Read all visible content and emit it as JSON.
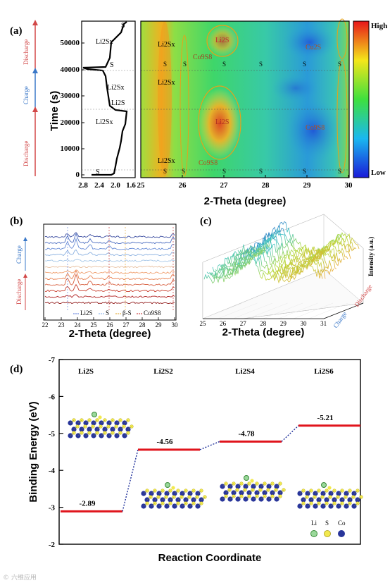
{
  "panel_a": {
    "label": "(a)",
    "side_labels": {
      "discharge_top": "Discharge",
      "charge": "Charge",
      "discharge_bottom": "Discharge"
    },
    "voltage_plot": {
      "ylabel": "Time (s)",
      "yticks": [
        "0",
        "10000",
        "20000",
        "30000",
        "40000",
        "50000"
      ],
      "xticks": [
        "2.8",
        "2.4",
        "2.0",
        "1.6"
      ],
      "annotations": [
        "S",
        "Li2Sx",
        "S",
        "Li2Sx",
        "Li2S",
        "Li2Sx",
        "S"
      ]
    },
    "heatmap": {
      "xlabel": "2-Theta (degree)",
      "xticks": [
        "25",
        "26",
        "27",
        "28",
        "29",
        "30"
      ],
      "colorbar_high": "High",
      "colorbar_low": "Low",
      "labels": {
        "li2sx_top": "Li2Sx",
        "li2s_top": "Li2S",
        "co9s8_top": "Co9S8",
        "cu2s_top": "Cu2S",
        "li2sx_mid": "Li2Sx",
        "li2s_mid": "Li2S",
        "co9s8_mid": "Co9S8",
        "li2sx_bottom": "Li2Sx",
        "co9s8_bottom": "Co9S8",
        "s_marker": "S"
      }
    }
  },
  "panel_b": {
    "label": "(b)",
    "side_labels": {
      "charge": "Charge",
      "discharge": "Discharge"
    },
    "xlabel": "2-Theta (degree)",
    "xticks": [
      "22",
      "23",
      "24",
      "25",
      "26",
      "27",
      "28",
      "29",
      "30"
    ],
    "legend": [
      "Li2S",
      "S",
      "β-S",
      "Co9S8"
    ]
  },
  "panel_c": {
    "label": "(c)",
    "xlabel": "2-Theta (degree)",
    "xticks": [
      "25",
      "26",
      "27",
      "28",
      "29",
      "30",
      "31"
    ],
    "zlabel": "Intensity (a.u.)",
    "depth_labels": {
      "charge": "Charge",
      "discharge": "Discharge"
    }
  },
  "panel_d": {
    "label": "(d)",
    "xlabel": "Reaction Coordinate",
    "ylabel": "Binding Energy (eV)",
    "chart_data": {
      "type": "line",
      "title": "",
      "xlabel": "Reaction Coordinate",
      "ylabel": "Binding Energy (eV)",
      "categories": [
        "Li2S",
        "Li2S2",
        "Li2S4",
        "Li2S6"
      ],
      "values": [
        -2.89,
        -4.56,
        -4.78,
        -5.21
      ],
      "value_labels": [
        "-2.89",
        "-4.56",
        "-4.78",
        "-5.21"
      ],
      "ylim": [
        -2,
        -7
      ],
      "yticks": [
        "-7",
        "-6",
        "-5",
        "-4",
        "-3",
        "-2"
      ],
      "legend": [
        "Li",
        "S",
        "Co"
      ],
      "colors": {
        "level": "#e0141c",
        "connector": "#1e2f9a",
        "li": "#7fc97f",
        "s": "#f2e94e",
        "co": "#28359a"
      }
    }
  },
  "watermark": "© 六维应用"
}
